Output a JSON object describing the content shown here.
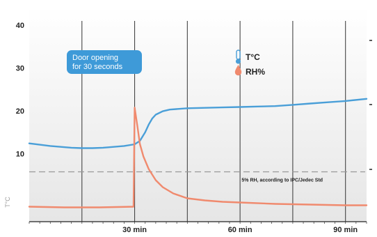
{
  "chart_data": {
    "type": "line",
    "x_ticks": [
      {
        "x": 30,
        "label": "30 min"
      },
      {
        "x": 60,
        "label": "60 min"
      },
      {
        "x": 90,
        "label": "90 min"
      }
    ],
    "vertical_gridlines_x": [
      15,
      30,
      45,
      60,
      75,
      90
    ],
    "xlim": [
      0,
      96
    ],
    "y_left": {
      "label": "T°C",
      "ylim": [
        0,
        44
      ],
      "ticks": [
        10,
        20,
        30,
        40
      ]
    },
    "y_right": {
      "label": "",
      "ticks": [],
      "tick_labels_visible": false
    },
    "legend": {
      "position": "top-right"
    },
    "series": [
      {
        "name": "T°C",
        "color": "#4a9fd8",
        "axis": "left",
        "x": [
          0,
          3,
          6,
          9,
          12,
          15,
          18,
          21,
          24,
          27,
          30,
          31.5,
          33,
          34,
          35,
          36,
          38,
          40,
          45,
          50,
          55,
          60,
          65,
          70,
          75,
          80,
          85,
          90,
          96
        ],
        "y": [
          12.4,
          12.1,
          11.8,
          11.6,
          11.4,
          11.3,
          11.3,
          11.4,
          11.6,
          11.8,
          12.2,
          13.0,
          15.0,
          16.8,
          18.2,
          19.1,
          19.9,
          20.3,
          20.6,
          20.7,
          20.8,
          20.9,
          21.0,
          21.1,
          21.4,
          21.7,
          22.0,
          22.3,
          22.8
        ]
      },
      {
        "name": "RH%",
        "color": "#f08a6e",
        "axis": "right",
        "x": [
          0,
          10,
          20,
          29.7,
          30,
          30.8,
          31.5,
          32.5,
          34,
          36,
          38,
          41,
          45,
          50,
          55,
          60,
          70,
          80,
          90,
          96
        ],
        "y": [
          1.0,
          0.9,
          0.9,
          1.0,
          15.2,
          12.5,
          10.0,
          8.2,
          6.4,
          4.8,
          3.8,
          2.9,
          2.2,
          1.9,
          1.7,
          1.6,
          1.4,
          1.3,
          1.2,
          1.2
        ]
      }
    ],
    "reference_line": {
      "y": 6,
      "label": "5% RH, according to IPC/Jedec Std",
      "style": "dashed",
      "color": "#999999"
    },
    "annotation": {
      "label": "Door opening for 30 seconds",
      "color": "#3e9ad8"
    }
  }
}
